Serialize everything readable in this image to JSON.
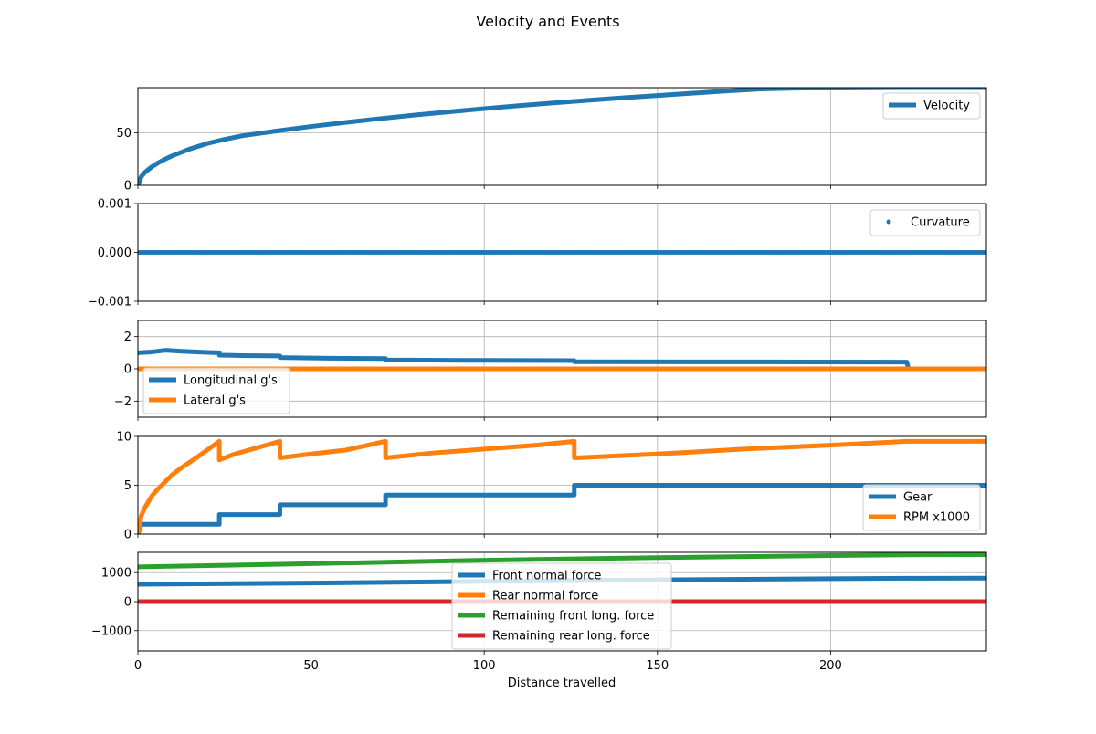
{
  "figure": {
    "title": "Velocity and Events",
    "xlabel": "Distance travelled"
  },
  "colors": {
    "blue": "#1f77b4",
    "orange": "#ff7f0e",
    "green": "#2ca02c",
    "red": "#d62728",
    "grid": "#b0b0b0"
  },
  "chart_data": [
    {
      "type": "line",
      "id": "velocity",
      "xlim": [
        0,
        245
      ],
      "ylim": [
        0,
        93
      ],
      "yticks": [
        0,
        50
      ],
      "xticks": [
        0,
        50,
        100,
        150,
        200
      ],
      "grid": true,
      "legend_placement": "center-right",
      "series": [
        {
          "name": "Velocity",
          "color": "#1f77b4",
          "x": [
            0,
            1,
            2,
            4,
            6,
            8,
            10,
            15,
            20,
            25,
            30,
            40,
            50,
            60,
            70,
            80,
            90,
            100,
            110,
            120,
            130,
            140,
            150,
            160,
            170,
            180,
            190,
            200,
            210,
            220,
            222,
            230,
            245
          ],
          "y": [
            0,
            8.5,
            12.3,
            17.6,
            21.7,
            25.2,
            28.2,
            34.6,
            39.8,
            43.7,
            47.1,
            51.7,
            56.0,
            59.9,
            63.5,
            66.9,
            70.0,
            73.0,
            75.8,
            78.4,
            80.9,
            83.3,
            85.5,
            87.7,
            89.8,
            91.7,
            92.5,
            92.6,
            92.8,
            93.0,
            93.0,
            93.0,
            93.0
          ]
        }
      ]
    },
    {
      "type": "scatter",
      "id": "curvature",
      "xlim": [
        0,
        245
      ],
      "ylim": [
        -0.001,
        0.001
      ],
      "yticks": [
        "0.001",
        "0.000",
        "−0.001"
      ],
      "ytick_values": [
        0.001,
        0,
        -0.001
      ],
      "xticks": [
        0,
        50,
        100,
        150,
        200
      ],
      "grid": true,
      "legend_placement": "top-right",
      "series": [
        {
          "name": "Curvature",
          "color": "#1f77b4",
          "x_range": [
            0,
            245
          ],
          "y": 0
        }
      ]
    },
    {
      "type": "line",
      "id": "gforce",
      "xlim": [
        0,
        245
      ],
      "ylim": [
        -3,
        3
      ],
      "yticks": [
        "2",
        "0",
        "−2"
      ],
      "ytick_values": [
        2,
        0,
        -2
      ],
      "xticks": [
        0,
        50,
        100,
        150,
        200
      ],
      "grid": true,
      "legend_placement": "lower-left",
      "series": [
        {
          "name": "Longitudinal g's",
          "color": "#1f77b4",
          "x": [
            0,
            4,
            8,
            12,
            20,
            23.5,
            23.5,
            30,
            41,
            41,
            55,
            71.5,
            71.5,
            100,
            126,
            126,
            180,
            222,
            222.5,
            245
          ],
          "y": [
            1.0,
            1.05,
            1.15,
            1.1,
            1.02,
            1.0,
            0.85,
            0.82,
            0.8,
            0.7,
            0.66,
            0.64,
            0.55,
            0.52,
            0.51,
            0.44,
            0.43,
            0.42,
            0.0,
            0.0
          ]
        },
        {
          "name": "Lateral g's",
          "color": "#ff7f0e",
          "x": [
            0,
            245
          ],
          "y": [
            0,
            0
          ]
        }
      ]
    },
    {
      "type": "line",
      "id": "gear-rpm",
      "xlim": [
        0,
        245
      ],
      "ylim": [
        0,
        10
      ],
      "yticks": [
        0,
        5,
        10
      ],
      "xticks": [
        0,
        50,
        100,
        150,
        200
      ],
      "grid": true,
      "legend_placement": "lower-right",
      "series": [
        {
          "name": "Gear",
          "color": "#1f77b4",
          "x": [
            0,
            1,
            23.5,
            23.5,
            41,
            41,
            71.5,
            71.5,
            126,
            126,
            245
          ],
          "y": [
            0,
            1,
            1,
            2,
            2,
            3,
            3,
            4,
            4,
            5,
            5
          ]
        },
        {
          "name": "RPM x1000",
          "color": "#ff7f0e",
          "x": [
            0,
            1,
            2,
            4,
            6,
            8,
            10,
            13,
            16,
            20,
            23.5,
            23.5,
            28,
            33,
            41,
            41,
            50,
            60,
            71.5,
            71.5,
            85,
            100,
            115,
            126,
            126,
            150,
            175,
            200,
            222,
            245
          ],
          "y": [
            0,
            1.9,
            2.7,
            3.9,
            4.7,
            5.4,
            6.1,
            6.9,
            7.6,
            8.6,
            9.5,
            7.6,
            8.2,
            8.7,
            9.5,
            7.8,
            8.2,
            8.6,
            9.5,
            7.8,
            8.3,
            8.7,
            9.1,
            9.5,
            7.8,
            8.2,
            8.7,
            9.1,
            9.5,
            9.5
          ]
        }
      ]
    },
    {
      "type": "line",
      "id": "forces",
      "xlim": [
        0,
        245
      ],
      "ylim": [
        -1700,
        1700
      ],
      "yticks": [
        "1000",
        "0",
        "−1000"
      ],
      "ytick_values": [
        1000,
        0,
        -1000
      ],
      "xticks": [
        0,
        50,
        100,
        150,
        200
      ],
      "xtick_labels": [
        "0",
        "50",
        "100",
        "150",
        "200"
      ],
      "xlabel": "Distance travelled",
      "grid": true,
      "legend_placement": "lower-center",
      "series": [
        {
          "name": "Front normal force",
          "color": "#1f77b4",
          "x": [
            0,
            50,
            100,
            150,
            200,
            222,
            245
          ],
          "y": [
            600,
            640,
            700,
            750,
            790,
            805,
            810
          ]
        },
        {
          "name": "Rear normal force",
          "color": "#ff7f0e",
          "x": [
            0,
            245
          ],
          "y": [
            0,
            0
          ]
        },
        {
          "name": "Remaining front long. force",
          "color": "#2ca02c",
          "x": [
            0,
            50,
            100,
            150,
            200,
            222,
            245
          ],
          "y": [
            1200,
            1310,
            1430,
            1520,
            1590,
            1615,
            1620
          ]
        },
        {
          "name": "Remaining rear long. force",
          "color": "#d62728",
          "x": [
            0,
            245
          ],
          "y": [
            0,
            0
          ]
        }
      ]
    }
  ]
}
